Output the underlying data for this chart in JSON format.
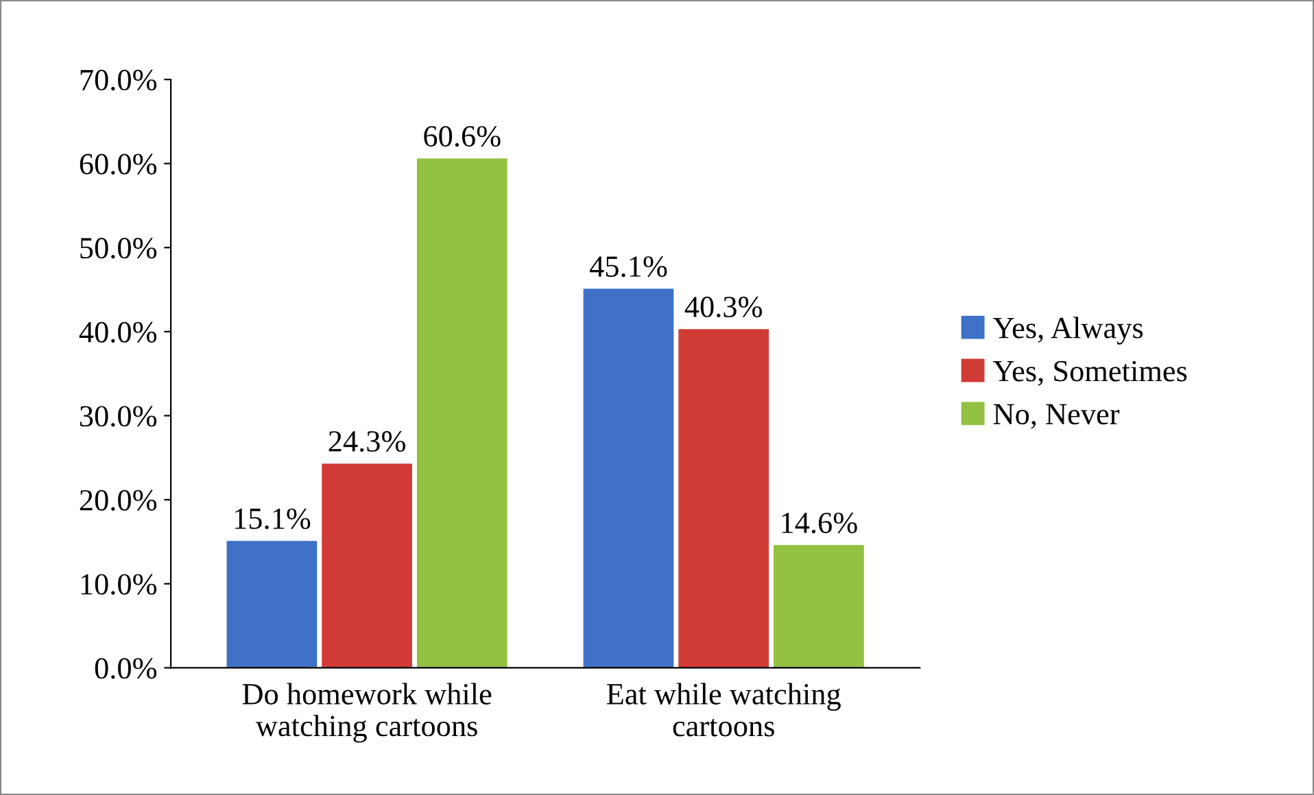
{
  "chart_data": {
    "type": "bar",
    "categories": [
      "Do homework while\nwatching cartoons",
      "Eat while watching\ncartoons"
    ],
    "series": [
      {
        "name": "Yes, Always",
        "color": "#3f72c6",
        "values": [
          15.1,
          45.1
        ],
        "value_labels": [
          "15.1%",
          "45.1%"
        ]
      },
      {
        "name": "Yes, Sometimes",
        "color": "#d13b35",
        "values": [
          24.3,
          40.3
        ],
        "value_labels": [
          "24.3%",
          "40.3%"
        ]
      },
      {
        "name": "No, Never",
        "color": "#93c142",
        "values": [
          60.6,
          14.6
        ],
        "value_labels": [
          "60.6%",
          "14.6%"
        ]
      }
    ],
    "ylim": [
      0,
      70
    ],
    "yticks": [
      {
        "value": 0,
        "label": "0.0%"
      },
      {
        "value": 10,
        "label": "10.0%"
      },
      {
        "value": 20,
        "label": "20.0%"
      },
      {
        "value": 30,
        "label": "30.0%"
      },
      {
        "value": 40,
        "label": "40.0%"
      },
      {
        "value": 50,
        "label": "50.0%"
      },
      {
        "value": 60,
        "label": "60.0%"
      },
      {
        "value": 70,
        "label": "70.0%"
      }
    ],
    "grid": false,
    "legend": "right"
  }
}
